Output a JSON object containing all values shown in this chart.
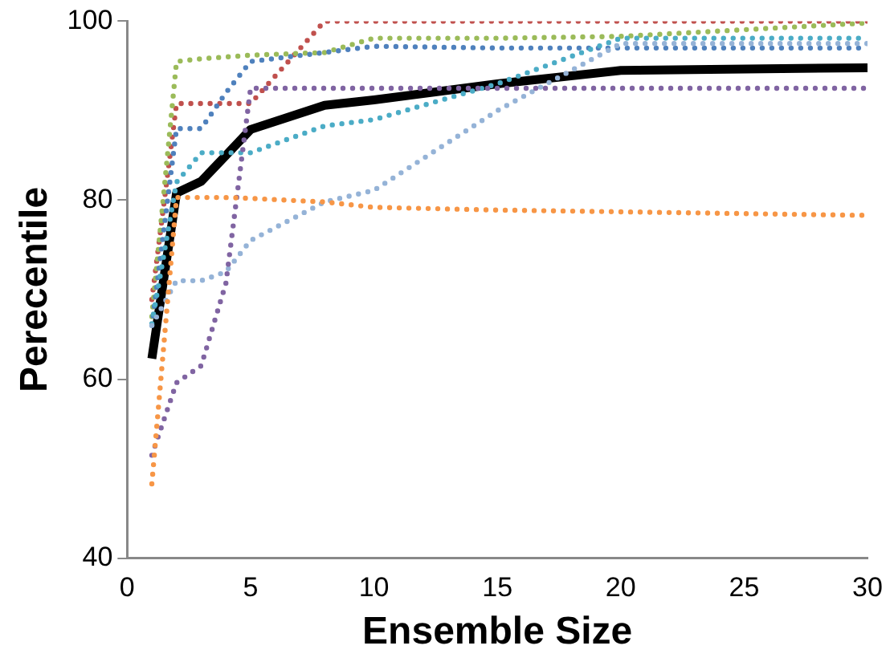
{
  "chart_data": {
    "type": "line",
    "xlabel": "Ensemble Size",
    "ylabel": "Perecentile",
    "x": [
      1,
      2,
      3,
      4,
      5,
      8,
      10,
      15,
      20,
      30
    ],
    "xlim": [
      0,
      30
    ],
    "xticks": [
      0,
      5,
      10,
      15,
      20,
      25,
      30
    ],
    "ylim": [
      40,
      100
    ],
    "yticks": [
      40,
      60,
      80,
      100
    ],
    "grid": false,
    "legend": false,
    "marker": "none",
    "series": [
      {
        "color": "#f79646",
        "line_style": "dotted",
        "values": [
          48.3,
          80.3,
          80.3,
          80.3,
          80.2,
          79.8,
          79.2,
          78.9,
          78.7,
          78.3
        ]
      },
      {
        "color": "#8064a2",
        "line_style": "dotted",
        "values": [
          51.5,
          59.6,
          61.5,
          70.7,
          92.5,
          92.5,
          92.5,
          92.5,
          92.5,
          92.5
        ]
      },
      {
        "color": "#95b3d7",
        "line_style": "dotted",
        "values": [
          66,
          71,
          71,
          72,
          75.5,
          79.8,
          81.1,
          90,
          97.5,
          97.5
        ]
      },
      {
        "color": "#4bacc6",
        "line_style": "dotted",
        "values": [
          66.2,
          82,
          85.3,
          85.3,
          85.3,
          88.3,
          89,
          93,
          98.1,
          98.1
        ]
      },
      {
        "color": "#4f81bd",
        "line_style": "dotted",
        "values": [
          66,
          88,
          88,
          92,
          95.5,
          96.5,
          97.2,
          97,
          97,
          97
        ]
      },
      {
        "color": "#9bbb59",
        "line_style": "dotted",
        "values": [
          67,
          95.5,
          95.8,
          96,
          96.2,
          96.5,
          98.1,
          98.1,
          98.3,
          99.8
        ]
      },
      {
        "color": "#c0504d",
        "line_style": "dotted",
        "values": [
          68.9,
          90.8,
          90.8,
          90.8,
          90.8,
          100,
          100,
          100,
          100,
          100
        ]
      },
      {
        "color": "#000000",
        "line_style": "solid",
        "values": [
          62.3,
          80.8,
          82.1,
          85,
          87.9,
          90.6,
          91.2,
          93,
          94.5,
          94.8
        ]
      }
    ]
  }
}
